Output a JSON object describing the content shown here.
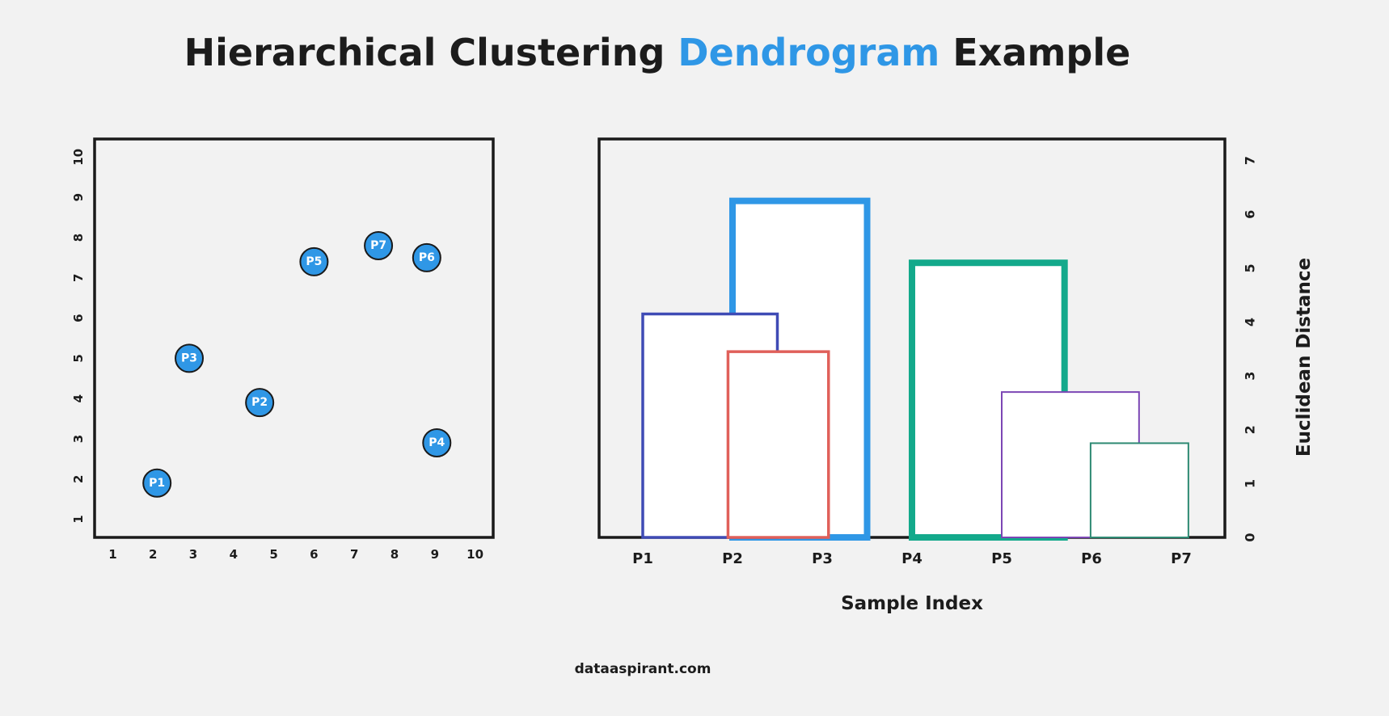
{
  "page": {
    "title_parts": [
      "Hierarchical Clustering ",
      "Dendrogram",
      " Example"
    ],
    "footer": "dataaspirant.com",
    "accent_color": "#2f97e6"
  },
  "chart_data": [
    {
      "type": "scatter",
      "xlim": [
        0.55,
        10.45
      ],
      "ylim": [
        0.55,
        10.45
      ],
      "xticks": [
        1,
        2,
        3,
        4,
        5,
        6,
        7,
        8,
        9,
        10
      ],
      "yticks": [
        1,
        2,
        3,
        4,
        5,
        6,
        7,
        8,
        9,
        10
      ],
      "grid": false,
      "marker_color": "#2f97e6",
      "points": [
        {
          "label": "P1",
          "x": 2.1,
          "y": 1.9
        },
        {
          "label": "P2",
          "x": 4.65,
          "y": 3.9
        },
        {
          "label": "P3",
          "x": 2.9,
          "y": 5.0
        },
        {
          "label": "P4",
          "x": 9.05,
          "y": 2.9
        },
        {
          "label": "P5",
          "x": 6.0,
          "y": 7.4
        },
        {
          "label": "P6",
          "x": 8.8,
          "y": 7.5
        },
        {
          "label": "P7",
          "x": 7.6,
          "y": 7.8
        }
      ]
    },
    {
      "type": "dendrogram",
      "categories": [
        "P1",
        "P2",
        "P3",
        "P4",
        "P5",
        "P6",
        "P7"
      ],
      "xlabel": "Sample Index",
      "ylabel": "Euclidean Distance",
      "ylim": [
        0,
        7.4
      ],
      "yticks": [
        0,
        1,
        2,
        3,
        4,
        5,
        6,
        7
      ],
      "grid": false,
      "merges": [
        {
          "left": 1,
          "right": 2.5,
          "height": 6.25,
          "color": "#2f97e6",
          "weight": "thick"
        },
        {
          "left": 0,
          "right": 1.5,
          "height": 4.15,
          "color": "#3f4bb5",
          "weight": "medium"
        },
        {
          "left": 3,
          "right": 4.7,
          "height": 5.1,
          "color": "#13a98b",
          "weight": "thick"
        },
        {
          "left": 0.95,
          "right": 2.07,
          "height": 3.45,
          "color": "#e0605a",
          "weight": "medium"
        },
        {
          "left": 4,
          "right": 5.53,
          "height": 2.7,
          "color": "#7c47b5",
          "weight": "thin"
        },
        {
          "left": 4.99,
          "right": 6.08,
          "height": 1.75,
          "color": "#2e8a73",
          "weight": "thin"
        }
      ]
    }
  ]
}
